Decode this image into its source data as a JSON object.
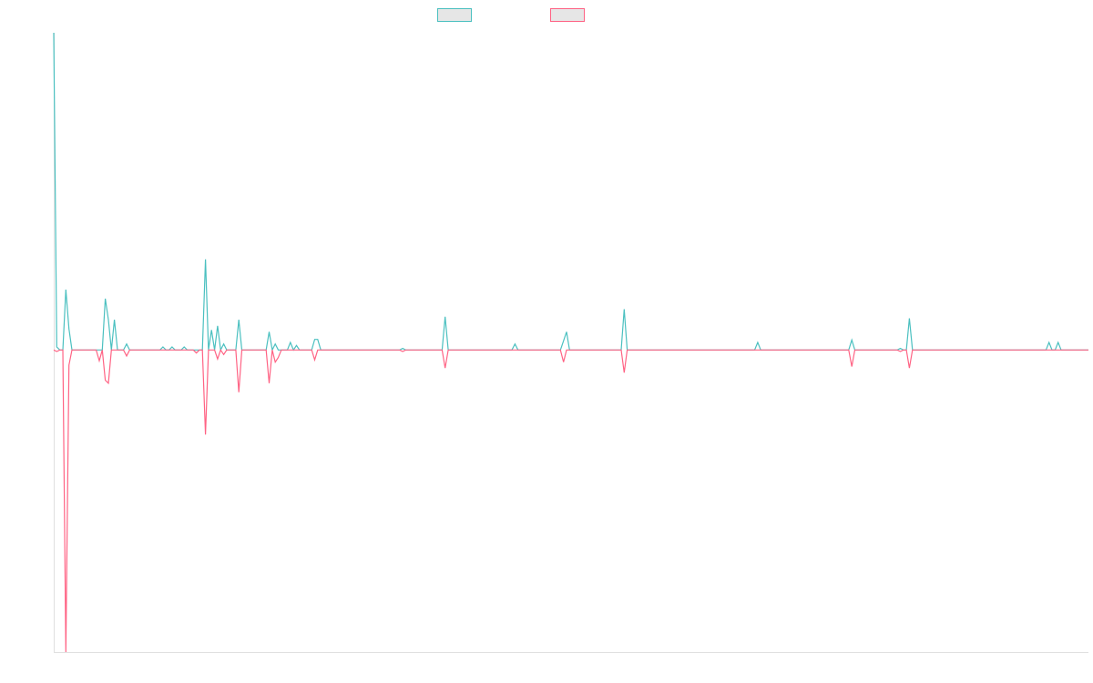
{
  "chart_data": {
    "type": "line",
    "title": "",
    "xlabel": "",
    "ylabel": "",
    "xlim": [
      0,
      341
    ],
    "ylim": [
      -100,
      105
    ],
    "grid": false,
    "legend_placement": "top-center",
    "series": [
      {
        "color": "#4bc0c0",
        "points": [
          [
            0,
            105
          ],
          [
            1,
            1
          ],
          [
            4,
            20
          ],
          [
            5,
            7
          ],
          [
            17,
            17
          ],
          [
            18,
            10
          ],
          [
            20,
            10
          ],
          [
            24,
            2
          ],
          [
            36,
            1
          ],
          [
            39,
            1
          ],
          [
            43,
            1
          ],
          [
            50,
            30
          ],
          [
            52,
            6.6
          ],
          [
            54,
            8
          ],
          [
            56,
            2
          ],
          [
            61,
            10
          ],
          [
            71,
            6
          ],
          [
            73,
            2
          ],
          [
            78,
            2.5
          ],
          [
            80,
            1.5
          ],
          [
            86,
            3.5
          ],
          [
            87,
            3.5
          ],
          [
            115,
            0.5
          ],
          [
            129,
            11
          ],
          [
            152,
            2
          ],
          [
            168,
            3
          ],
          [
            169,
            6
          ],
          [
            188,
            13.5
          ],
          [
            232,
            2.5
          ],
          [
            263,
            3.3
          ],
          [
            279,
            0.5
          ],
          [
            282,
            10.5
          ],
          [
            328,
            2.5
          ],
          [
            331,
            2.5
          ]
        ]
      },
      {
        "color": "#ff6384",
        "points": [
          [
            1,
            -0.5
          ],
          [
            4,
            -100
          ],
          [
            5,
            -5
          ],
          [
            15,
            -3.6
          ],
          [
            17,
            -10
          ],
          [
            18,
            -11
          ],
          [
            24,
            -2
          ],
          [
            47,
            -1
          ],
          [
            50,
            -28
          ],
          [
            54,
            -3
          ],
          [
            56,
            -1.5
          ],
          [
            61,
            -14
          ],
          [
            71,
            -11
          ],
          [
            73,
            -4
          ],
          [
            74,
            -2.5
          ],
          [
            86,
            -3.3
          ],
          [
            115,
            -0.5
          ],
          [
            129,
            -6
          ],
          [
            168,
            -4
          ],
          [
            188,
            -7.5
          ],
          [
            263,
            -5.5
          ],
          [
            279,
            -0.5
          ],
          [
            282,
            -6
          ]
        ]
      }
    ]
  }
}
